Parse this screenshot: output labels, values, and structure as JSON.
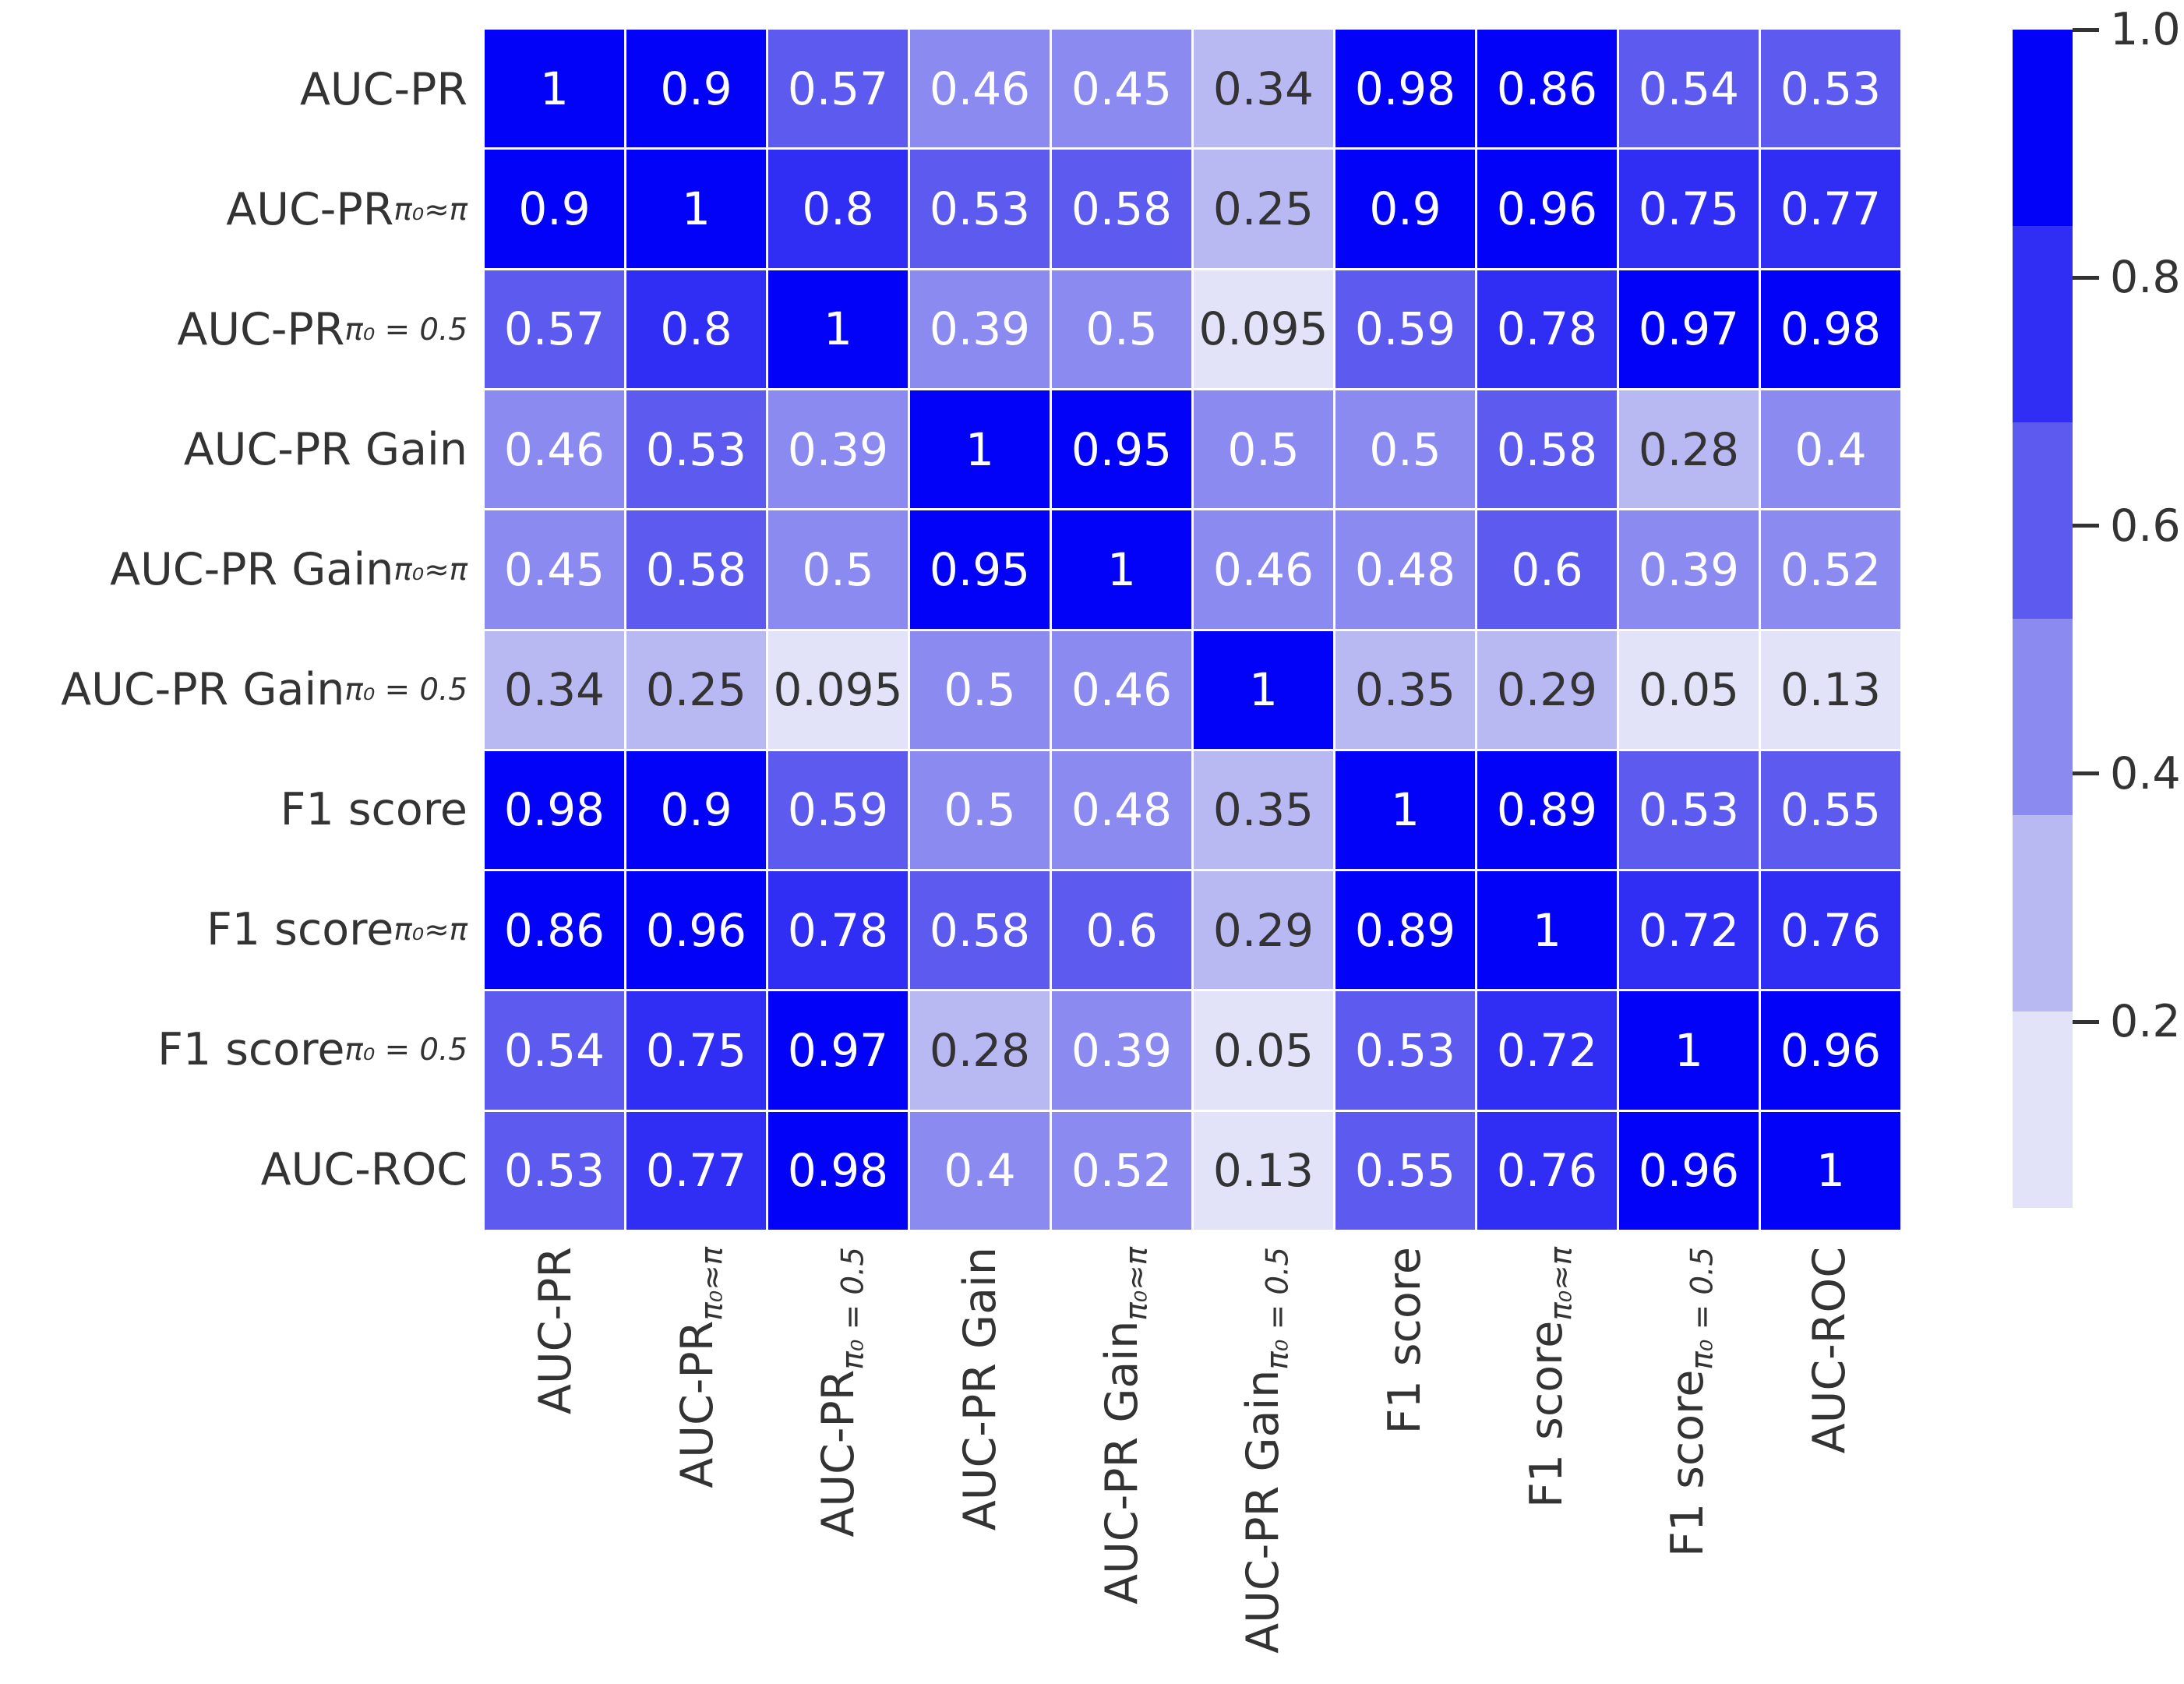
{
  "chart_data": {
    "type": "heatmap",
    "title": "",
    "categories": [
      {
        "base": "AUC-PR",
        "sub": ""
      },
      {
        "base": "AUC-PR",
        "sub": "π₀≈π"
      },
      {
        "base": "AUC-PR",
        "sub": "π₀ = 0.5"
      },
      {
        "base": "AUC-PR Gain",
        "sub": ""
      },
      {
        "base": "AUC-PR Gain",
        "sub": "π₀≈π"
      },
      {
        "base": "AUC-PR Gain",
        "sub": "π₀ = 0.5"
      },
      {
        "base": "F1 score",
        "sub": ""
      },
      {
        "base": "F1 score",
        "sub": "π₀≈π"
      },
      {
        "base": "F1 score",
        "sub": "π₀ = 0.5"
      },
      {
        "base": "AUC-ROC",
        "sub": ""
      }
    ],
    "matrix": [
      [
        1,
        0.9,
        0.57,
        0.46,
        0.45,
        0.34,
        0.98,
        0.86,
        0.54,
        0.53
      ],
      [
        0.9,
        1,
        0.8,
        0.53,
        0.58,
        0.25,
        0.9,
        0.96,
        0.75,
        0.77
      ],
      [
        0.57,
        0.8,
        1,
        0.39,
        0.5,
        0.095,
        0.59,
        0.78,
        0.97,
        0.98
      ],
      [
        0.46,
        0.53,
        0.39,
        1,
        0.95,
        0.5,
        0.5,
        0.58,
        0.28,
        0.4
      ],
      [
        0.45,
        0.58,
        0.5,
        0.95,
        1,
        0.46,
        0.48,
        0.6,
        0.39,
        0.52
      ],
      [
        0.34,
        0.25,
        0.095,
        0.5,
        0.46,
        1,
        0.35,
        0.29,
        0.05,
        0.13
      ],
      [
        0.98,
        0.9,
        0.59,
        0.5,
        0.48,
        0.35,
        1,
        0.89,
        0.53,
        0.55
      ],
      [
        0.86,
        0.96,
        0.78,
        0.58,
        0.6,
        0.29,
        0.89,
        1,
        0.72,
        0.76
      ],
      [
        0.54,
        0.75,
        0.97,
        0.28,
        0.39,
        0.05,
        0.53,
        0.72,
        1,
        0.96
      ],
      [
        0.53,
        0.77,
        0.98,
        0.4,
        0.52,
        0.13,
        0.55,
        0.76,
        0.96,
        1
      ]
    ],
    "color_scale": {
      "vmin": 0.05,
      "vmax": 1.0,
      "band_colors": [
        "#e2e2f8",
        "#b8b8f2",
        "#8a8af0",
        "#5c5aef",
        "#302ef4",
        "#0202f8"
      ],
      "light_text_min": 0.3667,
      "text_light": "#ffffff",
      "text_dark": "#333333",
      "grid_color": "#ffffff"
    },
    "colorbar": {
      "position": "right",
      "tick_values": [
        1.0,
        0.8,
        0.6,
        0.4,
        0.2
      ],
      "tick_labels": [
        "1.0",
        "0.8",
        "0.6",
        "0.4",
        "0.2"
      ]
    },
    "xlabel": "",
    "ylabel": "",
    "grid": false
  }
}
